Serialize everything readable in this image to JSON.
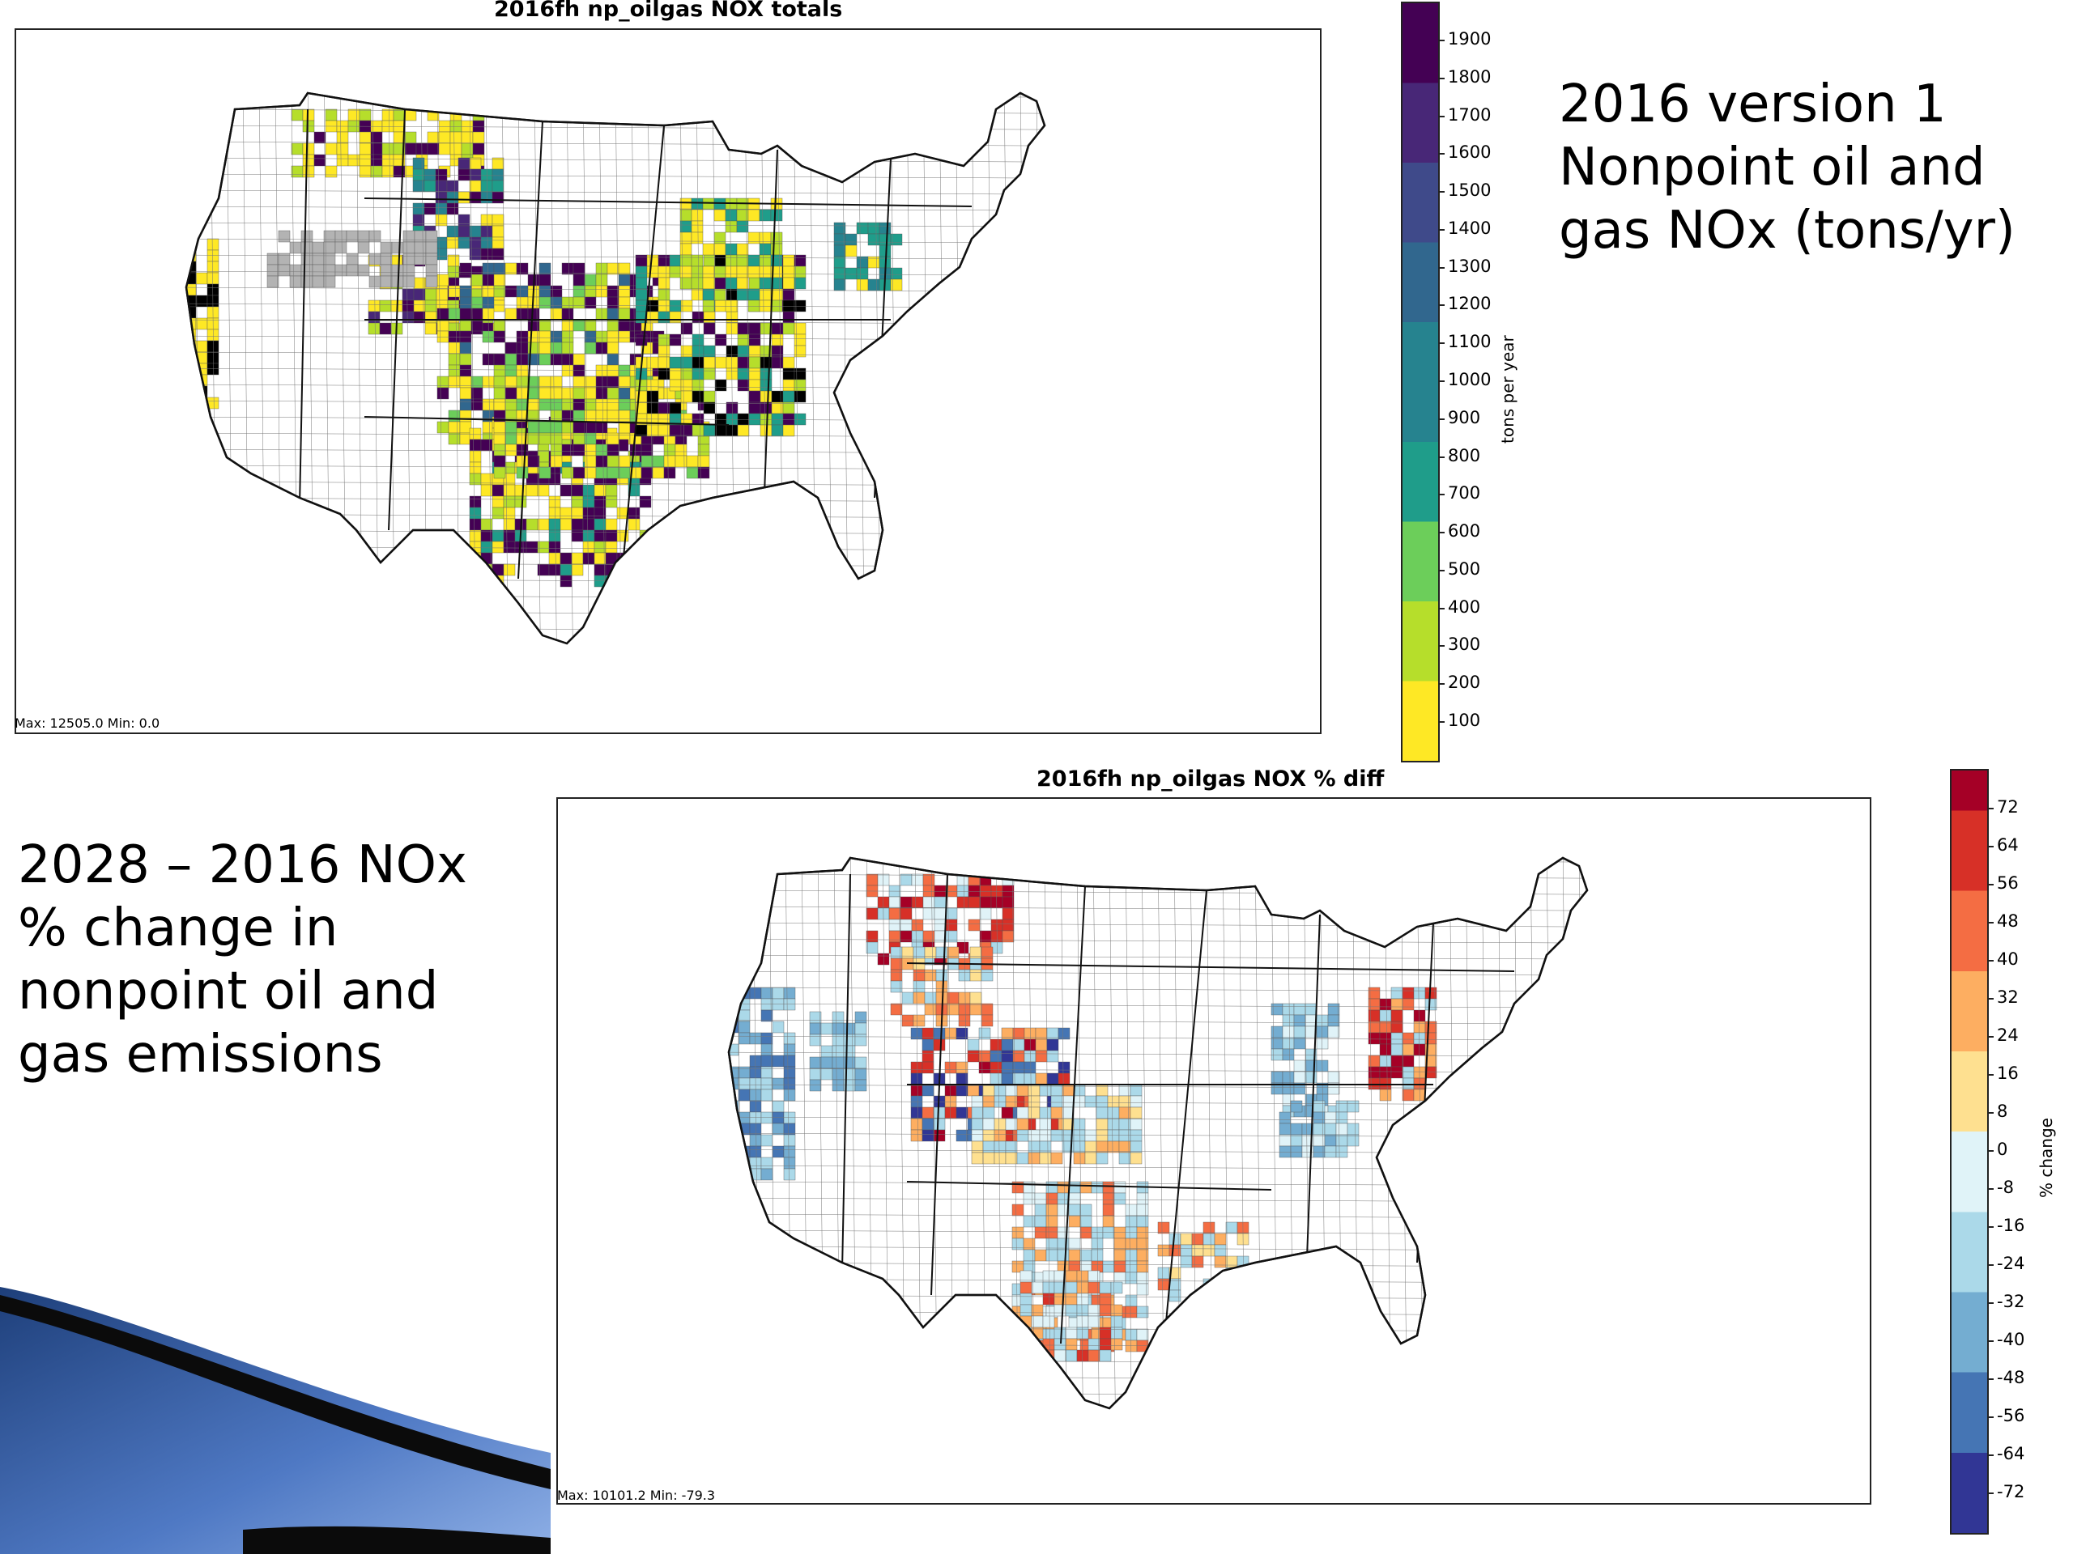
{
  "slide": {
    "caption_top": "2016 version 1\nNonpoint oil and\ngas NOx (tons/yr)",
    "caption_bottom": "2028 – 2016 NOx\n% change in\nnonpoint oil and\ngas emissions"
  },
  "map_top": {
    "title": "2016fh np_oilgas NOX totals",
    "stats": "Max: 12505.0  Min: 0.0",
    "colorbar": {
      "label": "tons per year",
      "ticks": [
        "1900",
        "1800",
        "1700",
        "1600",
        "1500",
        "1400",
        "1300",
        "1200",
        "1100",
        "1000",
        "900",
        "800",
        "700",
        "600",
        "500",
        "400",
        "300",
        "200",
        "100"
      ],
      "colors": [
        "#440154",
        "#482777",
        "#3f4a8a",
        "#31678e",
        "#26838f",
        "#1f9d8a",
        "#6cce5a",
        "#b6de2b",
        "#fee825"
      ],
      "no_data_color": "#b3b3b3"
    }
  },
  "map_bottom": {
    "title": "2016fh np_oilgas NOX % diff",
    "stats": "Max: 10101.2  Min: -79.3",
    "colorbar": {
      "label": "% change",
      "ticks": [
        "72",
        "64",
        "56",
        "48",
        "40",
        "32",
        "24",
        "16",
        "8",
        "0",
        "-8",
        "-16",
        "-24",
        "-32",
        "-40",
        "-48",
        "-56",
        "-64",
        "-72"
      ],
      "colors": [
        "#a50026",
        "#d73027",
        "#f46d43",
        "#fdae61",
        "#fee090",
        "#e0f3f8",
        "#abd9e9",
        "#74add1",
        "#4575b4",
        "#313695"
      ]
    }
  }
}
